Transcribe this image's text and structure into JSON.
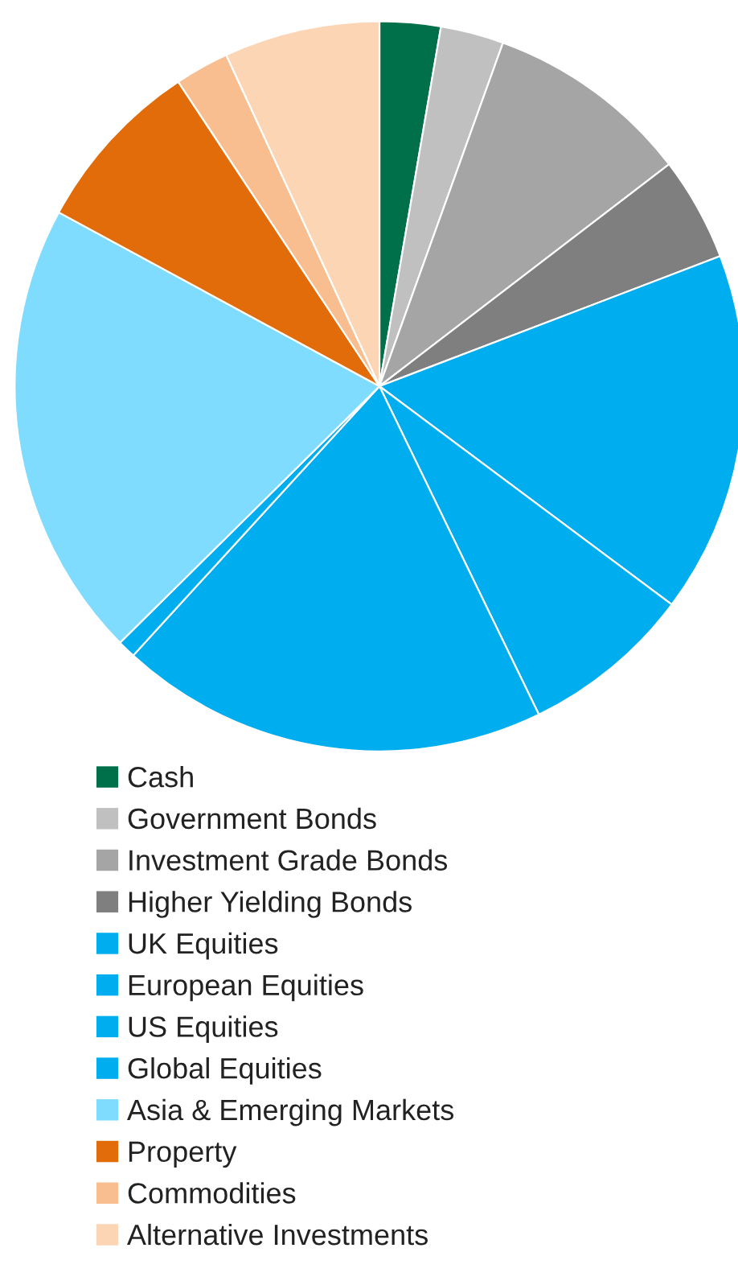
{
  "chart_data": {
    "type": "pie",
    "categories": [
      "Cash",
      "Government Bonds",
      "Investment Grade Bonds",
      "Higher Yielding Bonds",
      "UK Equities",
      "European Equities",
      "US Equities",
      "Global Equities",
      "Asia & Emerging Markets",
      "Property",
      "Commodities",
      "Alternative Investments"
    ],
    "values": [
      2.7,
      2.8,
      9.1,
      4.6,
      16.0,
      7.6,
      19.0,
      0.8,
      20.3,
      7.8,
      2.4,
      6.9
    ],
    "colors": [
      "#00704a",
      "#c0c0c0",
      "#a5a5a5",
      "#7f7f7f",
      "#00adef",
      "#00adef",
      "#00adef",
      "#00adef",
      "#80dcff",
      "#e36c0a",
      "#f9be8f",
      "#fcd5b4"
    ],
    "legend": "bottom"
  }
}
